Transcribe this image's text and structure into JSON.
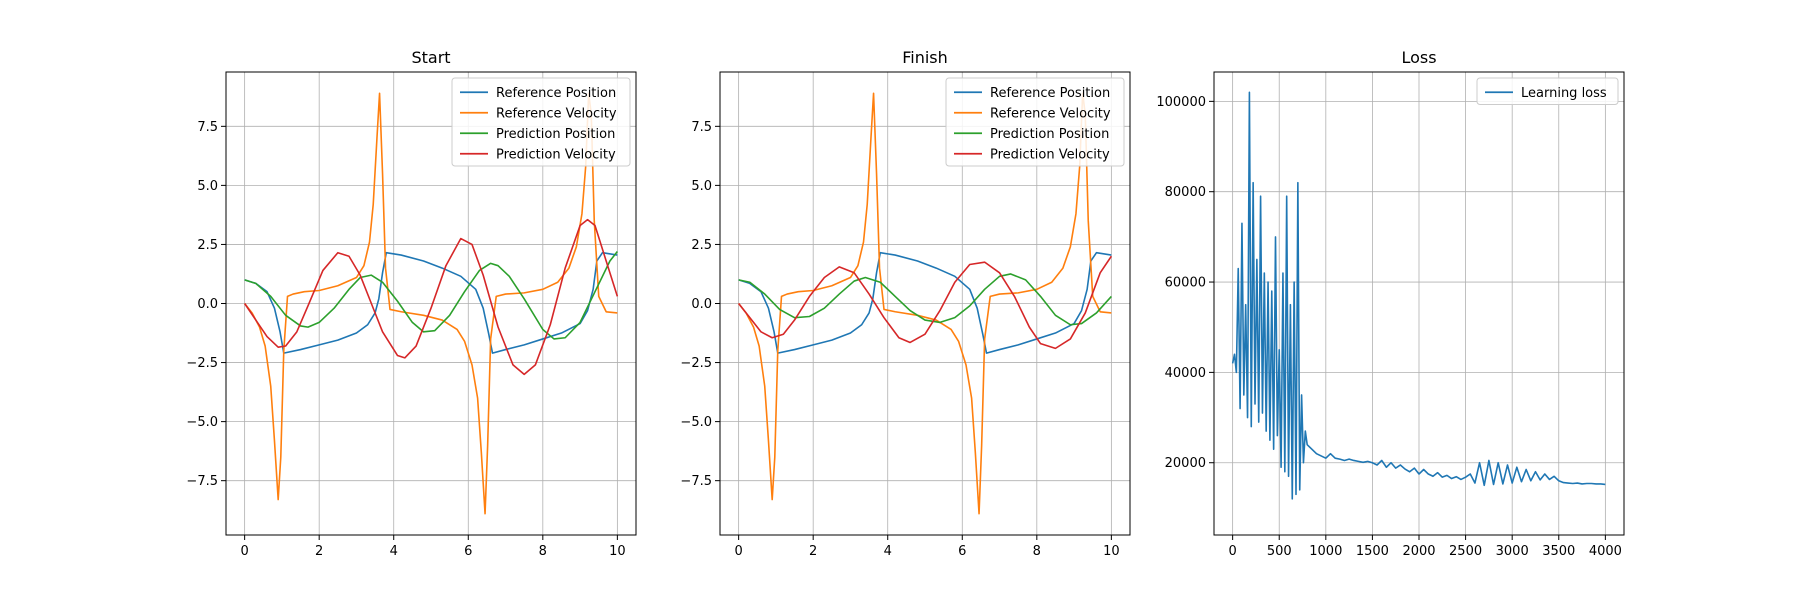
{
  "chart_data": [
    {
      "type": "line",
      "title": "Start",
      "xlabel": "",
      "ylabel": "",
      "xlim": [
        -0.5,
        10.5
      ],
      "ylim": [
        -9.8,
        9.8
      ],
      "xticks": [
        0,
        2,
        4,
        6,
        8,
        10
      ],
      "xtick_labels": [
        "0",
        "2",
        "4",
        "6",
        "8",
        "10"
      ],
      "yticks": [
        -7.5,
        -5.0,
        -2.5,
        0.0,
        2.5,
        5.0,
        7.5
      ],
      "ytick_labels": [
        "−7.5",
        "−5.0",
        "−2.5",
        "0.0",
        "2.5",
        "5.0",
        "7.5"
      ],
      "grid": true,
      "legend_position": "top-right",
      "series": [
        {
          "name": "Reference Position",
          "color": "#1f77b4",
          "x": [
            0,
            0.3,
            0.6,
            0.8,
            0.95,
            1.05,
            1.5,
            2,
            2.5,
            3,
            3.3,
            3.5,
            3.6,
            3.7,
            3.8,
            4.2,
            4.8,
            5.3,
            5.8,
            6.2,
            6.4,
            6.55,
            6.65,
            7,
            7.5,
            8,
            8.5,
            9,
            9.2,
            9.35,
            9.45,
            9.6,
            10
          ],
          "y": [
            1.0,
            0.85,
            0.5,
            -0.2,
            -1.2,
            -2.1,
            -1.95,
            -1.75,
            -1.55,
            -1.25,
            -0.9,
            -0.4,
            0.2,
            1.3,
            2.15,
            2.05,
            1.8,
            1.5,
            1.15,
            0.6,
            -0.2,
            -1.3,
            -2.1,
            -1.95,
            -1.75,
            -1.5,
            -1.25,
            -0.85,
            -0.3,
            0.6,
            1.8,
            2.15,
            2.05
          ]
        },
        {
          "name": "Reference Velocity",
          "color": "#ff7f0e",
          "x": [
            0,
            0.2,
            0.4,
            0.55,
            0.7,
            0.8,
            0.9,
            0.97,
            1.05,
            1.15,
            1.3,
            1.6,
            2,
            2.5,
            3,
            3.2,
            3.35,
            3.45,
            3.55,
            3.62,
            3.7,
            3.78,
            3.9,
            4.2,
            4.8,
            5.3,
            5.7,
            5.9,
            6.1,
            6.25,
            6.35,
            6.45,
            6.52,
            6.6,
            6.75,
            7,
            7.5,
            8,
            8.4,
            8.7,
            8.9,
            9.05,
            9.15,
            9.23,
            9.3,
            9.38,
            9.5,
            9.7,
            10
          ],
          "y": [
            0.0,
            -0.4,
            -1.0,
            -1.8,
            -3.5,
            -5.8,
            -8.3,
            -6.5,
            -2.0,
            0.3,
            0.4,
            0.5,
            0.55,
            0.75,
            1.1,
            1.6,
            2.6,
            4.2,
            7.0,
            8.9,
            5.5,
            1.5,
            -0.25,
            -0.35,
            -0.5,
            -0.7,
            -1.1,
            -1.6,
            -2.6,
            -4.0,
            -6.3,
            -8.9,
            -6.0,
            -1.5,
            0.3,
            0.4,
            0.45,
            0.6,
            0.9,
            1.5,
            2.4,
            3.8,
            5.8,
            8.9,
            8.0,
            3.5,
            0.3,
            -0.35,
            -0.4
          ]
        },
        {
          "name": "Prediction Position",
          "color": "#2ca02c",
          "x": [
            0,
            0.3,
            0.7,
            1.1,
            1.5,
            1.7,
            2,
            2.4,
            2.8,
            3.1,
            3.4,
            3.7,
            4.1,
            4.5,
            4.8,
            5.1,
            5.5,
            5.9,
            6.3,
            6.6,
            6.8,
            7.1,
            7.5,
            8,
            8.3,
            8.6,
            9,
            9.4,
            9.8,
            10
          ],
          "y": [
            1.0,
            0.85,
            0.3,
            -0.5,
            -0.95,
            -1.0,
            -0.8,
            -0.2,
            0.6,
            1.1,
            1.2,
            0.9,
            0.1,
            -0.8,
            -1.2,
            -1.15,
            -0.5,
            0.5,
            1.4,
            1.7,
            1.6,
            1.15,
            0.2,
            -1.1,
            -1.5,
            -1.45,
            -0.8,
            0.5,
            1.8,
            2.2
          ]
        },
        {
          "name": "Prediction Velocity",
          "color": "#d62728",
          "x": [
            0,
            0.3,
            0.6,
            0.9,
            1.1,
            1.4,
            1.7,
            2.1,
            2.5,
            2.8,
            3.1,
            3.4,
            3.7,
            4.1,
            4.3,
            4.6,
            5,
            5.4,
            5.8,
            6.1,
            6.4,
            6.8,
            7.2,
            7.5,
            7.8,
            8.2,
            8.6,
            9,
            9.2,
            9.4,
            9.7,
            10
          ],
          "y": [
            0.0,
            -0.7,
            -1.4,
            -1.85,
            -1.8,
            -1.2,
            -0.1,
            1.4,
            2.15,
            2.0,
            1.2,
            0.0,
            -1.2,
            -2.2,
            -2.3,
            -1.8,
            -0.2,
            1.6,
            2.75,
            2.5,
            1.2,
            -1.0,
            -2.6,
            -3.0,
            -2.6,
            -0.9,
            1.5,
            3.3,
            3.55,
            3.3,
            1.8,
            0.3
          ]
        }
      ]
    },
    {
      "type": "line",
      "title": "Finish",
      "xlabel": "",
      "ylabel": "",
      "xlim": [
        -0.5,
        10.5
      ],
      "ylim": [
        -9.8,
        9.8
      ],
      "xticks": [
        0,
        2,
        4,
        6,
        8,
        10
      ],
      "xtick_labels": [
        "0",
        "2",
        "4",
        "6",
        "8",
        "10"
      ],
      "yticks": [
        -7.5,
        -5.0,
        -2.5,
        0.0,
        2.5,
        5.0,
        7.5
      ],
      "ytick_labels": [
        "−7.5",
        "−5.0",
        "−2.5",
        "0.0",
        "2.5",
        "5.0",
        "7.5"
      ],
      "grid": true,
      "legend_position": "top-right",
      "series": [
        {
          "name": "Reference Position",
          "color": "#1f77b4",
          "x": [
            0,
            0.3,
            0.6,
            0.8,
            0.95,
            1.05,
            1.5,
            2,
            2.5,
            3,
            3.3,
            3.5,
            3.6,
            3.7,
            3.8,
            4.2,
            4.8,
            5.3,
            5.8,
            6.2,
            6.4,
            6.55,
            6.65,
            7,
            7.5,
            8,
            8.5,
            9,
            9.2,
            9.35,
            9.45,
            9.6,
            10
          ],
          "y": [
            1.0,
            0.85,
            0.5,
            -0.2,
            -1.2,
            -2.1,
            -1.95,
            -1.75,
            -1.55,
            -1.25,
            -0.9,
            -0.4,
            0.2,
            1.3,
            2.15,
            2.05,
            1.8,
            1.5,
            1.15,
            0.6,
            -0.2,
            -1.3,
            -2.1,
            -1.95,
            -1.75,
            -1.5,
            -1.25,
            -0.85,
            -0.3,
            0.6,
            1.8,
            2.15,
            2.05
          ]
        },
        {
          "name": "Reference Velocity",
          "color": "#ff7f0e",
          "x": [
            0,
            0.2,
            0.4,
            0.55,
            0.7,
            0.8,
            0.9,
            0.97,
            1.05,
            1.15,
            1.3,
            1.6,
            2,
            2.5,
            3,
            3.2,
            3.35,
            3.45,
            3.55,
            3.62,
            3.7,
            3.78,
            3.9,
            4.2,
            4.8,
            5.3,
            5.7,
            5.9,
            6.1,
            6.25,
            6.35,
            6.45,
            6.52,
            6.6,
            6.75,
            7,
            7.5,
            8,
            8.4,
            8.7,
            8.9,
            9.05,
            9.15,
            9.23,
            9.3,
            9.38,
            9.5,
            9.7,
            10
          ],
          "y": [
            0.0,
            -0.4,
            -1.0,
            -1.8,
            -3.5,
            -5.8,
            -8.3,
            -6.5,
            -2.0,
            0.3,
            0.4,
            0.5,
            0.55,
            0.75,
            1.1,
            1.6,
            2.6,
            4.2,
            7.0,
            8.9,
            5.5,
            1.5,
            -0.25,
            -0.35,
            -0.5,
            -0.7,
            -1.1,
            -1.6,
            -2.6,
            -4.0,
            -6.3,
            -8.9,
            -6.0,
            -1.5,
            0.3,
            0.4,
            0.45,
            0.6,
            0.9,
            1.5,
            2.4,
            3.8,
            5.8,
            8.9,
            8.0,
            3.5,
            0.3,
            -0.35,
            -0.4
          ]
        },
        {
          "name": "Prediction Position",
          "color": "#2ca02c",
          "x": [
            0,
            0.3,
            0.7,
            1.1,
            1.5,
            1.9,
            2.3,
            2.7,
            3.1,
            3.4,
            3.8,
            4.2,
            4.6,
            5,
            5.4,
            5.8,
            6.2,
            6.6,
            7,
            7.3,
            7.7,
            8.1,
            8.5,
            8.9,
            9.2,
            9.6,
            10
          ],
          "y": [
            1.0,
            0.9,
            0.4,
            -0.25,
            -0.6,
            -0.55,
            -0.2,
            0.4,
            0.95,
            1.1,
            0.9,
            0.3,
            -0.3,
            -0.7,
            -0.8,
            -0.6,
            -0.1,
            0.6,
            1.15,
            1.25,
            1.0,
            0.3,
            -0.5,
            -0.9,
            -0.85,
            -0.4,
            0.3
          ]
        },
        {
          "name": "Prediction Velocity",
          "color": "#d62728",
          "x": [
            0,
            0.3,
            0.6,
            0.9,
            1.2,
            1.5,
            1.9,
            2.3,
            2.7,
            3.1,
            3.5,
            3.9,
            4.3,
            4.6,
            5,
            5.4,
            5.8,
            6.2,
            6.6,
            7,
            7.4,
            7.8,
            8.1,
            8.5,
            8.9,
            9.3,
            9.7,
            10
          ],
          "y": [
            0.0,
            -0.6,
            -1.2,
            -1.45,
            -1.3,
            -0.7,
            0.3,
            1.1,
            1.55,
            1.3,
            0.4,
            -0.6,
            -1.45,
            -1.65,
            -1.3,
            -0.3,
            0.9,
            1.65,
            1.75,
            1.3,
            0.3,
            -1.0,
            -1.7,
            -1.9,
            -1.5,
            -0.4,
            1.3,
            2.0
          ]
        }
      ]
    },
    {
      "type": "line",
      "title": "Loss",
      "xlabel": "",
      "ylabel": "",
      "xlim": [
        -200,
        4200
      ],
      "ylim": [
        4000,
        106500
      ],
      "xticks": [
        0,
        500,
        1000,
        1500,
        2000,
        2500,
        3000,
        3500,
        4000
      ],
      "xtick_labels": [
        "0",
        "500",
        "1000",
        "1500",
        "2000",
        "2500",
        "3000",
        "3500",
        "4000"
      ],
      "yticks": [
        20000,
        40000,
        60000,
        80000,
        100000
      ],
      "ytick_labels": [
        "20000",
        "40000",
        "60000",
        "80000",
        "100000"
      ],
      "grid": true,
      "legend_position": "top-right",
      "series": [
        {
          "name": "Learning loss",
          "color": "#1f77b4",
          "x": [
            0,
            20,
            40,
            60,
            80,
            100,
            120,
            140,
            160,
            180,
            200,
            220,
            240,
            260,
            280,
            300,
            320,
            340,
            360,
            380,
            400,
            420,
            440,
            460,
            480,
            500,
            520,
            540,
            560,
            580,
            600,
            620,
            640,
            660,
            680,
            700,
            720,
            740,
            760,
            780,
            800,
            850,
            900,
            950,
            1000,
            1050,
            1100,
            1150,
            1200,
            1250,
            1300,
            1350,
            1400,
            1450,
            1500,
            1550,
            1600,
            1650,
            1700,
            1750,
            1800,
            1850,
            1900,
            1950,
            2000,
            2050,
            2100,
            2150,
            2200,
            2250,
            2300,
            2350,
            2400,
            2450,
            2500,
            2550,
            2600,
            2650,
            2700,
            2750,
            2800,
            2850,
            2900,
            2950,
            3000,
            3050,
            3100,
            3150,
            3200,
            3250,
            3300,
            3350,
            3400,
            3450,
            3500,
            3550,
            3600,
            3650,
            3700,
            3750,
            3800,
            3850,
            3900,
            3950,
            4000
          ],
          "y": [
            42000,
            44000,
            40000,
            63000,
            32000,
            73000,
            35000,
            55000,
            30000,
            102000,
            28000,
            82000,
            33000,
            65000,
            29000,
            79000,
            31000,
            62000,
            27000,
            60000,
            25000,
            58000,
            23000,
            70000,
            26000,
            45000,
            19000,
            62000,
            18000,
            79000,
            17000,
            55000,
            12000,
            60000,
            13000,
            82000,
            14000,
            35000,
            20000,
            27000,
            24000,
            23000,
            22000,
            21500,
            21000,
            22000,
            21000,
            20800,
            20500,
            20800,
            20500,
            20300,
            20100,
            20300,
            20000,
            19500,
            20500,
            19000,
            20000,
            18800,
            19500,
            18600,
            18000,
            18800,
            17500,
            18500,
            17500,
            17000,
            17800,
            16800,
            17200,
            16500,
            16900,
            16300,
            16800,
            17500,
            15500,
            20000,
            15000,
            20500,
            15200,
            20000,
            15300,
            19500,
            15500,
            19000,
            15800,
            18500,
            16000,
            18000,
            16200,
            17500,
            16300,
            17000,
            16000,
            15600,
            15500,
            15400,
            15500,
            15300,
            15400,
            15400,
            15300,
            15300,
            15200
          ]
        }
      ]
    }
  ]
}
